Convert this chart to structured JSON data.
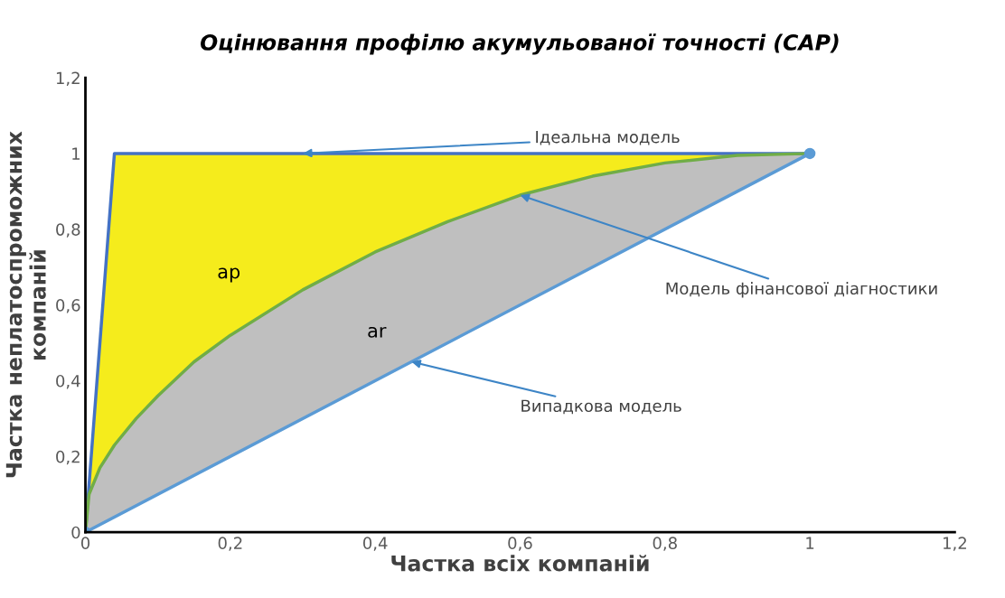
{
  "chart_data": {
    "type": "line",
    "title": "Оцінювання профілю акумульованої точності (CAP)",
    "xlabel": "Частка всіх компаній",
    "ylabel": "Частка неплатоспроможних\nкомпаній",
    "xlim": [
      0,
      1.2
    ],
    "ylim": [
      0,
      1.2
    ],
    "xticks": [
      0,
      {
        "value": 0.2,
        "label": "0,2"
      },
      {
        "value": 0.4,
        "label": "0,4"
      },
      {
        "value": 0.6,
        "label": "0,6"
      },
      {
        "value": 0.8,
        "label": "0,8"
      },
      1,
      {
        "value": 1.2,
        "label": "1,2"
      }
    ],
    "yticks": [
      0,
      {
        "value": 0.2,
        "label": "0,2"
      },
      {
        "value": 0.4,
        "label": "0,4"
      },
      {
        "value": 0.6,
        "label": "0,6"
      },
      {
        "value": 0.8,
        "label": "0,8"
      },
      1,
      {
        "value": 1.2,
        "label": "1,2"
      }
    ],
    "grid": false,
    "legend": false,
    "series": [
      {
        "color": "#4472c4",
        "x": [
          0,
          0.04,
          1
        ],
        "values": [
          0,
          1,
          1
        ],
        "marker": "none"
      },
      {
        "color": "#70ad47",
        "x": [
          0,
          0.005,
          0.02,
          0.04,
          0.07,
          0.1,
          0.15,
          0.2,
          0.3,
          0.4,
          0.5,
          0.6,
          0.7,
          0.8,
          0.9,
          1
        ],
        "values": [
          0,
          0.1,
          0.17,
          0.23,
          0.3,
          0.36,
          0.45,
          0.52,
          0.64,
          0.74,
          0.82,
          0.89,
          0.94,
          0.975,
          0.995,
          1
        ],
        "marker": "none"
      },
      {
        "color": "#5b9bd5",
        "x": [
          0,
          1
        ],
        "values": [
          0,
          1
        ],
        "marker": "circle"
      }
    ],
    "annotations": [
      {
        "text": "Ідеальна модель",
        "x": 0.3,
        "y": 1
      },
      {
        "text": "Модель фінансової діагностики",
        "x": 0.6,
        "y": 0.89
      },
      {
        "text": "Випадкова модель",
        "x": 0.45,
        "y": 0.45
      },
      "ap",
      "ar"
    ]
  }
}
